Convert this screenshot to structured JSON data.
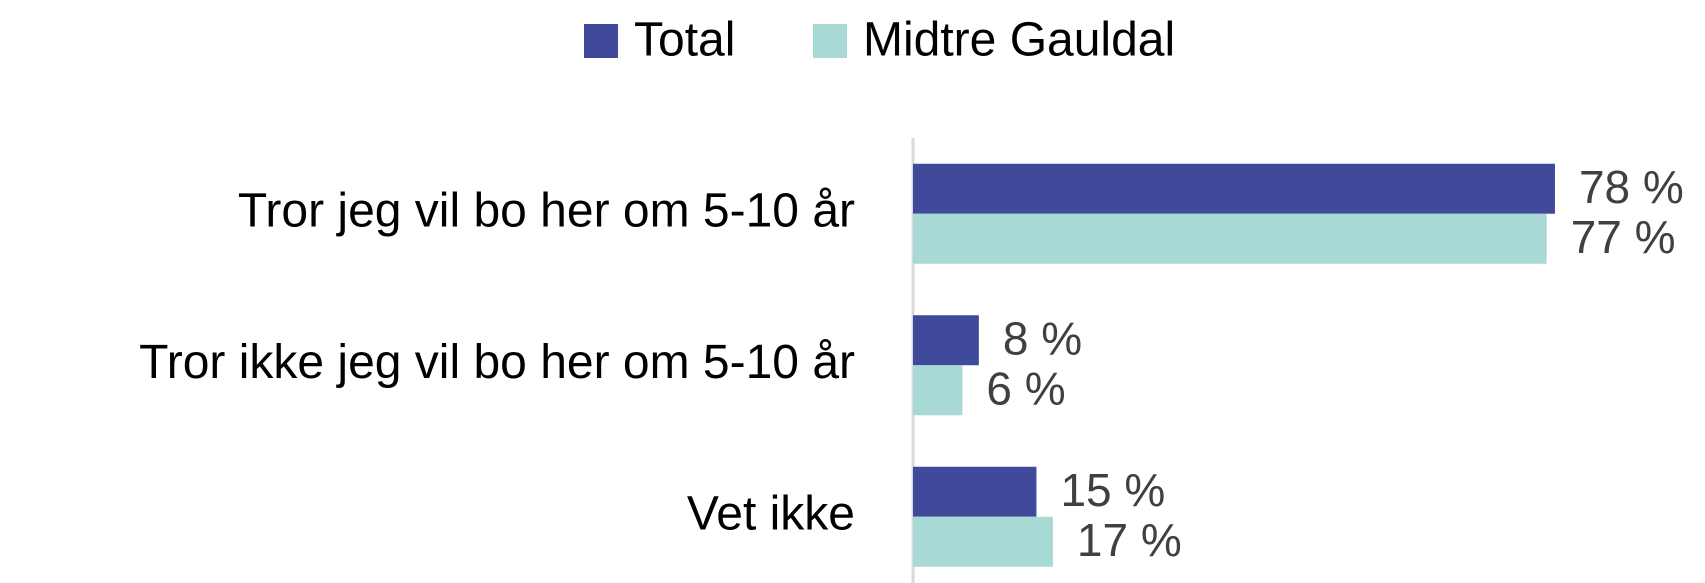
{
  "chart_data": {
    "type": "barh",
    "categories": [
      "Tror jeg vil bo her om 5-10 år",
      "Tror ikke jeg vil bo her om 5-10 år",
      "Vet ikke"
    ],
    "series": [
      {
        "name": "Total",
        "color": "#3f4a9a",
        "values": [
          78,
          8,
          15
        ],
        "value_labels": [
          "78 %",
          "8 %",
          "15 %"
        ]
      },
      {
        "name": "Midtre Gauldal",
        "color": "#a8d9d5",
        "values": [
          77,
          6,
          17
        ],
        "value_labels": [
          "77 %",
          "6 %",
          "17 %"
        ]
      }
    ],
    "xlim": [
      0,
      90
    ],
    "legend": "top"
  }
}
